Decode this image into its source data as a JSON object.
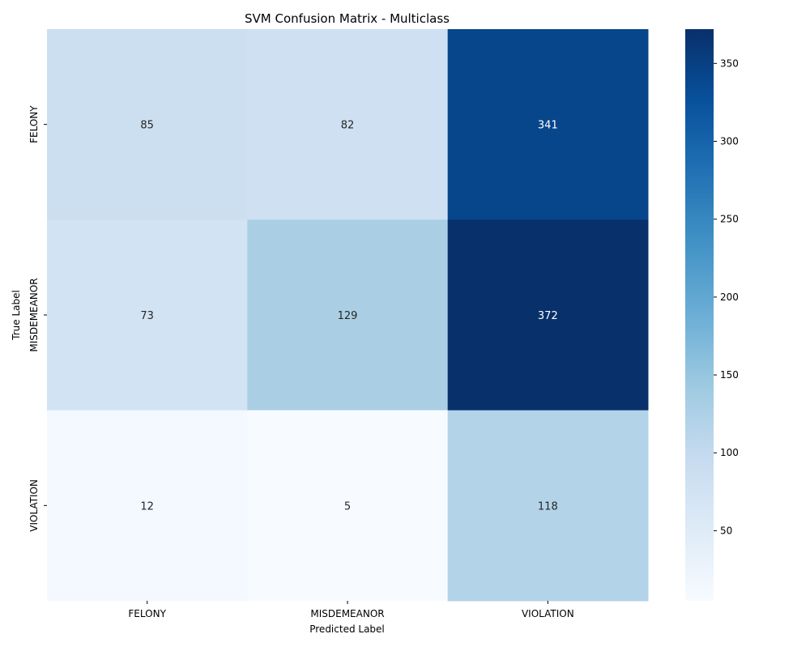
{
  "chart_data": {
    "type": "heatmap",
    "title": "SVM Confusion Matrix - Multiclass",
    "xlabel": "Predicted Label",
    "ylabel": "True Label",
    "x_categories": [
      "FELONY",
      "MISDEMEANOR",
      "VIOLATION"
    ],
    "y_categories": [
      "FELONY",
      "MISDEMEANOR",
      "VIOLATION"
    ],
    "values": [
      [
        85,
        82,
        341
      ],
      [
        73,
        129,
        372
      ],
      [
        12,
        5,
        118
      ]
    ],
    "colormap": "Blues",
    "colorbar": {
      "min": 5,
      "max": 372,
      "ticks": [
        50,
        100,
        150,
        200,
        250,
        300,
        350
      ]
    },
    "colors": {
      "text_dark": "#262626",
      "text_light": "#ffffff"
    }
  }
}
